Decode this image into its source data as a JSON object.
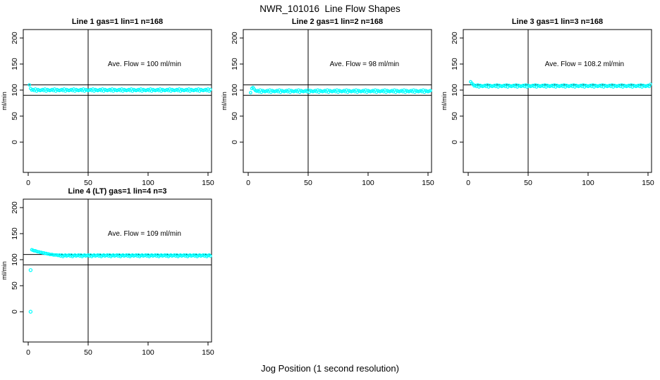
{
  "figure": {
    "bg_color": "#ffffff",
    "axis_color": "#000000",
    "point_color": "#00ffff"
  },
  "chart_data": {
    "type": "scatter",
    "title": "NWR_101016  Line Flow Shapes",
    "xlabel": "Jog Position (1 second resolution)",
    "ylabel": "ml/min",
    "x_ticks": [
      0,
      50,
      100,
      150
    ],
    "y_ticks": [
      0,
      50,
      100,
      150,
      200
    ],
    "xlim": [
      -4,
      153
    ],
    "ylim": [
      -55,
      216
    ],
    "grid": false,
    "ref_lines_y": [
      90,
      110
    ],
    "ref_line_x": 50,
    "marker": "open-circle",
    "panels": [
      {
        "title": "Line 1 gas=1 lin=1 n=168",
        "annotation": "Ave. Flow =  100  ml/min",
        "ave_flow": 100,
        "n": 168,
        "x_start": 1,
        "y_values": [
          110,
          103,
          100,
          101,
          99,
          102,
          98,
          101,
          100,
          99,
          100,
          101,
          99,
          102,
          98,
          101,
          100,
          99,
          100,
          101,
          99,
          102,
          98,
          101,
          100,
          99,
          100,
          101,
          99,
          102,
          98,
          101,
          100,
          99,
          100,
          101,
          99,
          102,
          98,
          101,
          100,
          99,
          100,
          101,
          99,
          102,
          98,
          101,
          100,
          99,
          100,
          101,
          99,
          102,
          98,
          101,
          100,
          99,
          100,
          101,
          99,
          102,
          98,
          101,
          100,
          99,
          100,
          101,
          99,
          102,
          98,
          101,
          100,
          99,
          100,
          101,
          99,
          102,
          98,
          101,
          100,
          99,
          100,
          101,
          99,
          102,
          98,
          101,
          100,
          99,
          100,
          101,
          99,
          102,
          98,
          101,
          100,
          99,
          100,
          101,
          99,
          102,
          98,
          101,
          100,
          99,
          100,
          101,
          99,
          102,
          98,
          101,
          100,
          99,
          100,
          101,
          99,
          102,
          98,
          101,
          100,
          99,
          100,
          101,
          99,
          102,
          98,
          101,
          100,
          99,
          100,
          101,
          99,
          102,
          98,
          101,
          100,
          99,
          100,
          101,
          99,
          102,
          98,
          101,
          100,
          99,
          100,
          101,
          99,
          102,
          98,
          101
        ],
        "extra_points": []
      },
      {
        "title": "Line 2 gas=1 lin=2 n=168",
        "annotation": "Ave. Flow =  98  ml/min",
        "ave_flow": 98,
        "n": 168,
        "x_start": 2,
        "y_values": [
          95,
          103,
          105,
          102,
          99,
          98,
          99,
          97,
          100,
          96,
          99,
          98,
          97,
          98,
          99,
          97,
          100,
          96,
          99,
          98,
          97,
          98,
          99,
          97,
          100,
          96,
          99,
          98,
          97,
          98,
          99,
          97,
          100,
          96,
          99,
          98,
          97,
          98,
          99,
          97,
          100,
          96,
          99,
          98,
          97,
          98,
          99,
          97,
          100,
          96,
          99,
          98,
          97,
          98,
          99,
          97,
          100,
          96,
          99,
          98,
          97,
          98,
          99,
          97,
          100,
          96,
          99,
          98,
          97,
          98,
          99,
          97,
          100,
          96,
          99,
          98,
          97,
          98,
          99,
          97,
          100,
          96,
          99,
          98,
          97,
          98,
          99,
          97,
          100,
          96,
          99,
          98,
          97,
          98,
          99,
          97,
          100,
          96,
          99,
          98,
          97,
          98,
          99,
          97,
          100,
          96,
          99,
          98,
          97,
          98,
          99,
          97,
          100,
          96,
          99,
          98,
          97,
          98,
          99,
          97,
          100,
          96,
          99,
          98,
          97,
          98,
          99,
          97,
          100,
          96,
          99,
          98,
          97,
          98,
          99,
          97,
          100,
          96,
          99,
          98,
          97,
          98,
          99,
          97,
          100,
          96,
          99,
          98,
          97,
          98,
          99
        ],
        "extra_points": []
      },
      {
        "title": "Line 3 gas=1 lin=3 n=168",
        "annotation": "Ave. Flow =  108.2  ml/min",
        "ave_flow": 108.2,
        "n": 168,
        "x_start": 2,
        "y_values": [
          116,
          113,
          111,
          108,
          109,
          107,
          110,
          106,
          109,
          108,
          107,
          108,
          109,
          107,
          110,
          106,
          109,
          108,
          107,
          108,
          109,
          107,
          110,
          106,
          109,
          108,
          107,
          108,
          109,
          107,
          110,
          106,
          109,
          108,
          107,
          108,
          109,
          107,
          110,
          106,
          109,
          108,
          107,
          108,
          109,
          107,
          110,
          106,
          109,
          108,
          107,
          108,
          109,
          107,
          110,
          106,
          109,
          108,
          107,
          108,
          109,
          107,
          110,
          106,
          109,
          108,
          107,
          108,
          109,
          107,
          110,
          106,
          109,
          108,
          107,
          108,
          109,
          107,
          110,
          106,
          109,
          108,
          107,
          108,
          109,
          107,
          110,
          106,
          109,
          108,
          107,
          108,
          109,
          107,
          110,
          106,
          109,
          108,
          107,
          108,
          109,
          107,
          110,
          106,
          109,
          108,
          107,
          108,
          109,
          107,
          110,
          106,
          109,
          108,
          107,
          108,
          109,
          107,
          110,
          106,
          109,
          108,
          107,
          108,
          109,
          107,
          110,
          106,
          109,
          108,
          107,
          108,
          109,
          107,
          110,
          106,
          109,
          108,
          107,
          108,
          109,
          107,
          110,
          106,
          109,
          108,
          107,
          108,
          109,
          107,
          111
        ],
        "extra_points": []
      },
      {
        "title": "Line 4 (LT) gas=1 lin=4 n=3",
        "annotation": "Ave. Flow =  109  ml/min",
        "ave_flow": 109,
        "n": 3,
        "x_start": 3,
        "y_values": [
          119,
          118,
          117,
          117,
          116,
          115,
          115,
          114,
          114,
          113,
          113,
          112,
          112,
          111,
          111,
          110,
          110,
          110,
          109,
          109,
          109,
          109,
          108,
          109,
          107,
          109,
          106,
          108,
          109,
          107,
          108,
          109,
          107,
          109,
          106,
          108,
          109,
          107,
          108,
          109,
          107,
          109,
          106,
          108,
          109,
          107,
          108,
          109,
          107,
          109,
          106,
          108,
          109,
          107,
          108,
          109,
          107,
          109,
          106,
          108,
          109,
          107,
          108,
          109,
          107,
          109,
          106,
          108,
          109,
          107,
          108,
          109,
          107,
          109,
          106,
          108,
          109,
          107,
          108,
          109,
          107,
          109,
          106,
          108,
          109,
          107,
          108,
          109,
          107,
          109,
          106,
          108,
          109,
          107,
          108,
          109,
          107,
          109,
          106,
          108,
          109,
          107,
          108,
          109,
          107,
          109,
          106,
          108,
          109,
          107,
          108,
          109,
          107,
          109,
          106,
          108,
          109,
          107,
          108,
          109,
          107,
          109,
          106,
          108,
          109,
          107,
          108,
          109,
          107,
          109,
          106,
          108,
          109,
          107,
          108,
          109,
          107,
          109,
          106,
          108,
          109,
          107,
          108,
          109,
          107,
          109,
          106,
          108,
          109,
          107
        ],
        "extra_points": [
          [
            2,
            80
          ],
          [
            2,
            0
          ]
        ]
      }
    ]
  }
}
